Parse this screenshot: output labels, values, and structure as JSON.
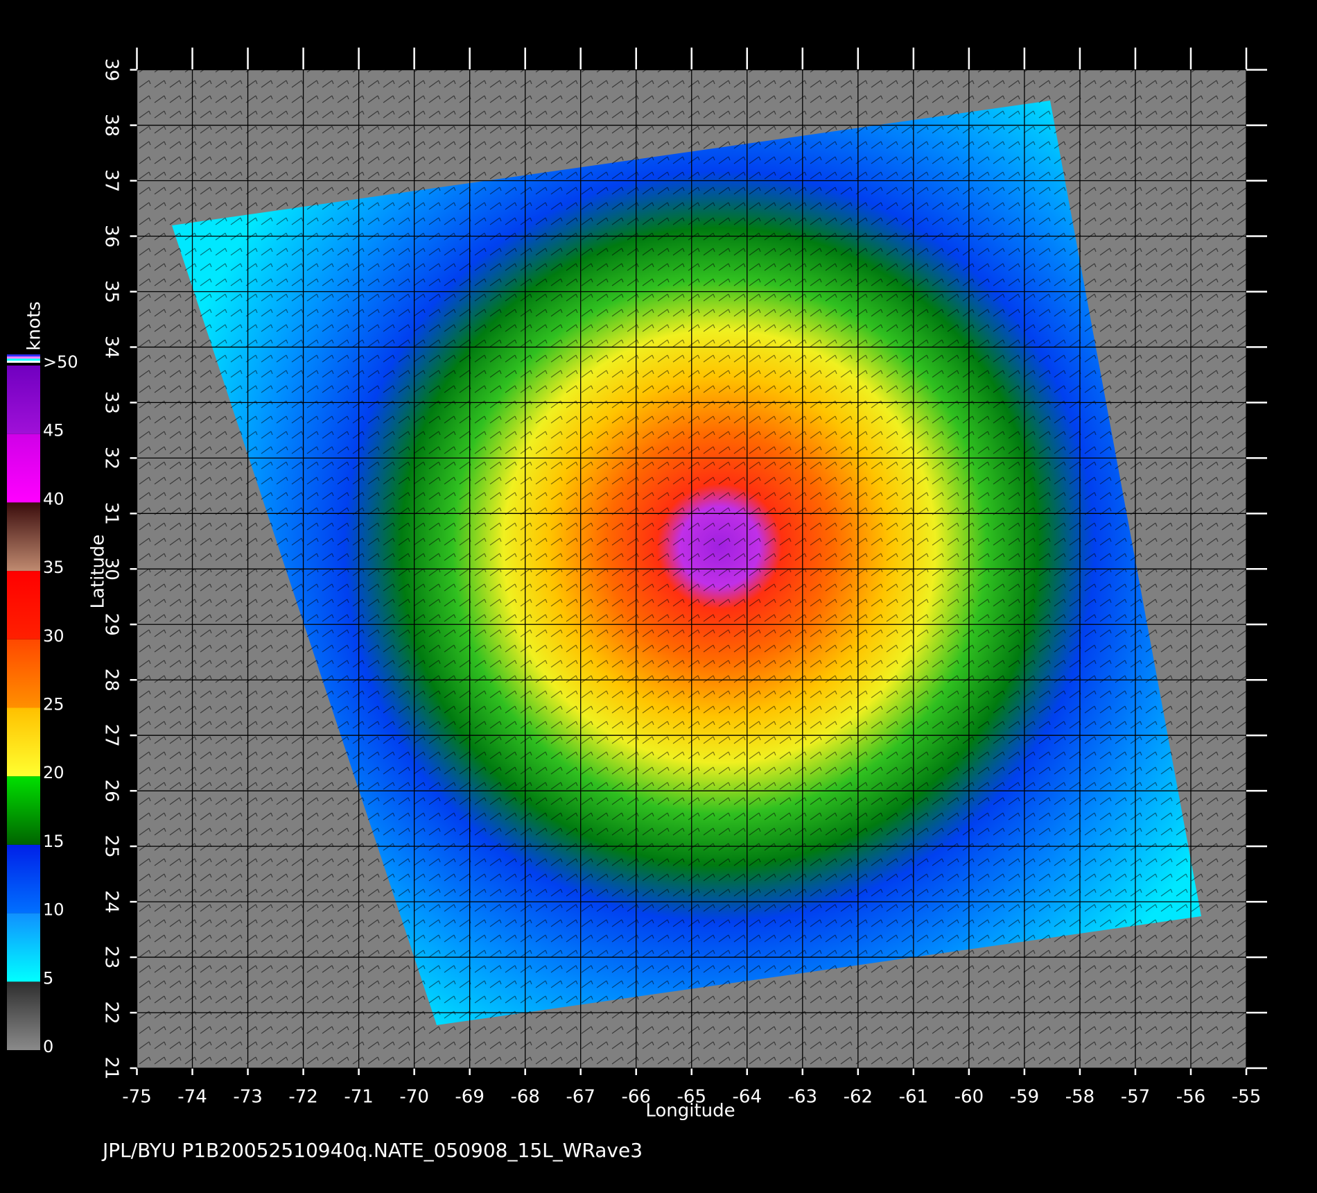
{
  "chart_data": {
    "type": "map",
    "xlabel": "Longitude",
    "ylabel": "Latitude",
    "xlim": [
      -75,
      -55
    ],
    "xticks": [
      -75,
      -74,
      -73,
      -72,
      -71,
      -70,
      -69,
      -68,
      -67,
      -66,
      -65,
      -64,
      -63,
      -62,
      -61,
      -60,
      -59,
      -58,
      -57,
      -56,
      -55
    ],
    "ylim": [
      21,
      39
    ],
    "yticks": [
      21,
      22,
      23,
      24,
      25,
      26,
      27,
      28,
      29,
      30,
      31,
      32,
      33,
      34,
      35,
      36,
      37,
      38,
      39
    ],
    "grid": true,
    "colorbar": {
      "label": "knots",
      "lim": [
        0,
        50
      ],
      "ticks": [
        0,
        5,
        10,
        15,
        20,
        25,
        30,
        35,
        40,
        45,
        {
          "value": 50,
          "label": ">50"
        }
      ],
      "colors": [
        [
          "#8a8a8a",
          "#2e2e2e"
        ],
        [
          "#00ffff",
          "#1090ff"
        ],
        [
          "#0070ff",
          "#0020e8"
        ],
        [
          "#006400",
          "#00e000"
        ],
        [
          "#ffff30",
          "#ffc000"
        ],
        [
          "#ff9000",
          "#ff4800"
        ],
        [
          "#ff2000",
          "#ff0000"
        ],
        [
          "#c08a70",
          "#3a0c0c"
        ],
        [
          "#ff00ff",
          "#d000e8"
        ],
        [
          "#a010d8",
          "#7000c0"
        ]
      ]
    },
    "footer": "JPL/BYU  P1B20052510940q.NATE_050908_15L_WRave3"
  }
}
